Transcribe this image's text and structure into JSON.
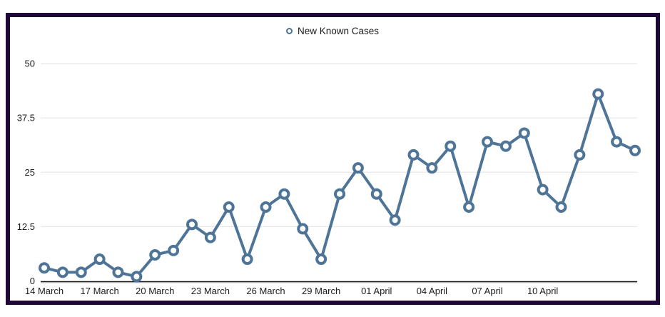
{
  "legend": {
    "label": "New Known Cases"
  },
  "colors": {
    "line": "#4e7497",
    "marker_fill": "#ffffff",
    "gridline": "#e8e8e8",
    "axis": "#1a1a1a",
    "text": "#1c1c1c",
    "frame_border": "#1f0838",
    "background": "#ffffff"
  },
  "chart_data": {
    "type": "line",
    "title": "",
    "series_name": "New Known Cases",
    "marker": "open-circle",
    "grid": true,
    "legend_position": "top-center",
    "ylim": [
      0,
      50
    ],
    "y_ticks": [
      0,
      12.5,
      25,
      37.5,
      50
    ],
    "y_tick_labels": [
      "0",
      "12.5",
      "25",
      "37.5",
      "50"
    ],
    "x": [
      "14 March",
      "15 March",
      "16 March",
      "17 March",
      "18 March",
      "19 March",
      "20 March",
      "21 March",
      "22 March",
      "23 March",
      "24 March",
      "25 March",
      "26 March",
      "27 March",
      "28 March",
      "29 March",
      "30 March",
      "31 March",
      "01 April",
      "02 April",
      "03 April",
      "04 April",
      "05 April",
      "06 April",
      "07 April",
      "08 April",
      "09 April",
      "10 April",
      "11 April",
      "12 April",
      "13 April",
      "14 April",
      "15 April"
    ],
    "values": [
      3,
      2,
      2,
      5,
      2,
      1,
      6,
      7,
      13,
      10,
      17,
      5,
      17,
      20,
      12,
      5,
      20,
      26,
      20,
      14,
      29,
      26,
      31,
      17,
      32,
      31,
      34,
      21,
      17,
      29,
      43,
      32,
      30
    ],
    "x_tick_labels": [
      "14 March",
      "17 March",
      "20 March",
      "23 March",
      "26 March",
      "29 March",
      "01 April",
      "04 April",
      "07 April",
      "10 April"
    ],
    "x_tick_indices": [
      0,
      3,
      6,
      9,
      12,
      15,
      18,
      21,
      24,
      27
    ]
  }
}
